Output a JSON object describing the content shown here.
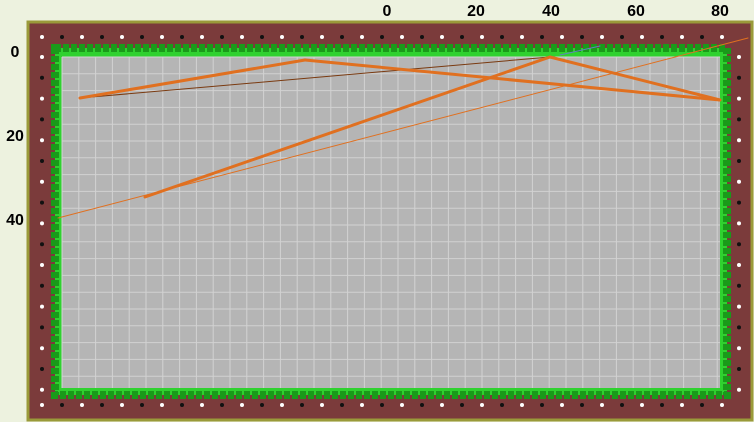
{
  "x_axis": {
    "labels": [
      "0",
      "20",
      "40",
      "60",
      "80"
    ]
  },
  "y_axis": {
    "labels": [
      "0",
      "20",
      "40"
    ]
  }
}
